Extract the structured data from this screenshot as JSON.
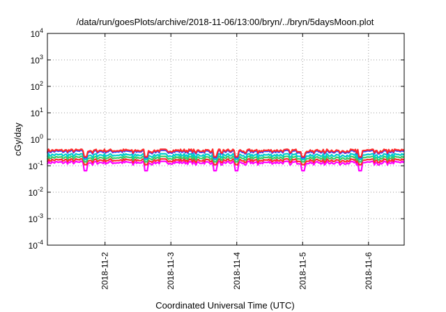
{
  "chart_data": {
    "type": "line",
    "title": "/data/run/goesPlots/archive/2018-11-06/13:00/bryn/../bryn/5daysMoon.plot",
    "xlabel": "Coordinated Universal Time (UTC)",
    "ylabel": "cGy/day",
    "y_scale": "log",
    "ylim": [
      "1e-4",
      "1e4"
    ],
    "y_ticks": [
      {
        "base": "10",
        "exp": "-4"
      },
      {
        "base": "10",
        "exp": "-3"
      },
      {
        "base": "10",
        "exp": "-2"
      },
      {
        "base": "10",
        "exp": "-1"
      },
      {
        "base": "10",
        "exp": "0"
      },
      {
        "base": "10",
        "exp": "1"
      },
      {
        "base": "10",
        "exp": "2"
      },
      {
        "base": "10",
        "exp": "3"
      },
      {
        "base": "10",
        "exp": "4"
      }
    ],
    "xlim": [
      "2018-11-01T03:00",
      "2018-11-06T13:00"
    ],
    "x_ticks": [
      "2018-11-2",
      "2018-11-3",
      "2018-11-4",
      "2018-11-5",
      "2018-11-6"
    ],
    "grid": true,
    "series": [
      {
        "color": "#ff00ff",
        "base": 0.13,
        "dip": 0.065
      },
      {
        "color": "#ff2a2a",
        "base": 0.16,
        "dip": 0.11
      },
      {
        "color": "#33cc66",
        "base": 0.2,
        "dip": 0.14
      },
      {
        "color": "#00cccc",
        "base": 0.25,
        "dip": 0.17
      },
      {
        "color": "#3a3aff",
        "base": 0.34,
        "dip": 0.2
      },
      {
        "color": "#ff2a2a",
        "base": 0.37,
        "dip": 0.22
      }
    ],
    "dip_times": [
      "2018-11-01T17:00",
      "2018-11-02T15:00",
      "2018-11-03T16:00",
      "2018-11-04T00:00",
      "2018-11-05T00:00",
      "2018-11-05T21:00"
    ]
  }
}
